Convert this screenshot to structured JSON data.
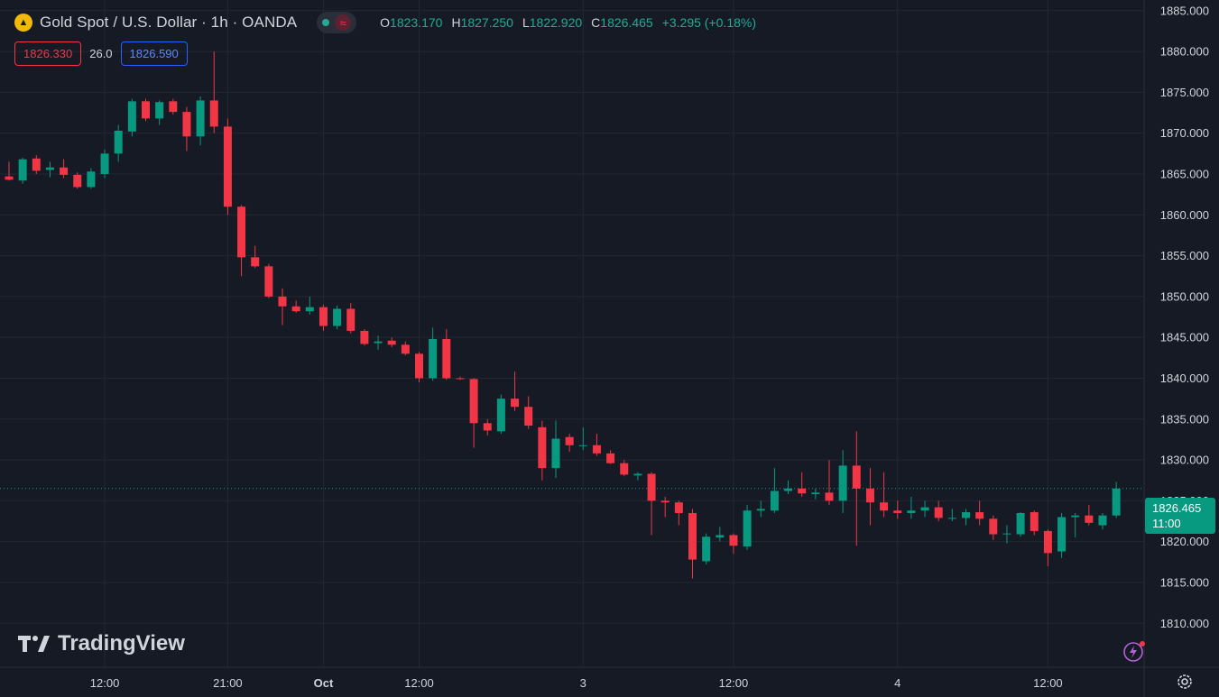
{
  "header": {
    "title": "Gold Spot / U.S. Dollar · 1h · OANDA",
    "logo_icon": "gold-bars-icon",
    "status_icon": "market-open-dot-icon",
    "waves_icon": "waves-icon",
    "ohlc": {
      "o_label": "O",
      "o_value": "1823.170",
      "h_label": "H",
      "h_value": "1827.250",
      "l_label": "L",
      "l_value": "1822.920",
      "c_label": "C",
      "c_value": "1826.465",
      "change": "+3.295 (+0.18%)"
    }
  },
  "trade": {
    "sell_price": "1826.330",
    "spread": "26.0",
    "buy_price": "1826.590"
  },
  "watermark": "TradingView",
  "last_price": {
    "price": "1826.465",
    "countdown": "11:00"
  },
  "colors": {
    "background": "#161a25",
    "grid": "#232733",
    "up": "#089981",
    "down": "#f23645",
    "text": "#d1d4dc",
    "last_price": "#089981"
  },
  "chart_data": {
    "type": "candlestick",
    "ylim": [
      1808,
      1887
    ],
    "y_ticks": [
      "1885.000",
      "1880.000",
      "1875.000",
      "1870.000",
      "1865.000",
      "1860.000",
      "1855.000",
      "1850.000",
      "1845.000",
      "1840.000",
      "1835.000",
      "1830.000",
      "1825.000",
      "1820.000",
      "1815.000",
      "1810.000"
    ],
    "x_ticks": [
      {
        "label": "12:00",
        "index": 7
      },
      {
        "label": "21:00",
        "index": 16
      },
      {
        "label": "Oct",
        "index": 23
      },
      {
        "label": "12:00",
        "index": 30
      },
      {
        "label": "3",
        "index": 42
      },
      {
        "label": "12:00",
        "index": 53
      },
      {
        "label": "4",
        "index": 65
      },
      {
        "label": "12:00",
        "index": 76
      }
    ],
    "bold_x_ticks": [
      "Oct"
    ],
    "candles": [
      {
        "o": 1864.7,
        "h": 1866.5,
        "l": 1864.2,
        "c": 1864.3
      },
      {
        "o": 1864.2,
        "h": 1867.0,
        "l": 1863.8,
        "c": 1866.8
      },
      {
        "o": 1866.9,
        "h": 1867.3,
        "l": 1865.0,
        "c": 1865.4
      },
      {
        "o": 1865.5,
        "h": 1866.5,
        "l": 1864.6,
        "c": 1865.8
      },
      {
        "o": 1865.8,
        "h": 1866.8,
        "l": 1864.5,
        "c": 1864.9
      },
      {
        "o": 1864.9,
        "h": 1865.2,
        "l": 1863.2,
        "c": 1863.4
      },
      {
        "o": 1863.4,
        "h": 1865.7,
        "l": 1863.2,
        "c": 1865.3
      },
      {
        "o": 1865.0,
        "h": 1868.0,
        "l": 1864.5,
        "c": 1867.5
      },
      {
        "o": 1867.5,
        "h": 1871.0,
        "l": 1866.5,
        "c": 1870.3
      },
      {
        "o": 1870.2,
        "h": 1874.2,
        "l": 1869.6,
        "c": 1873.9
      },
      {
        "o": 1873.9,
        "h": 1874.2,
        "l": 1871.5,
        "c": 1871.8
      },
      {
        "o": 1871.8,
        "h": 1874.0,
        "l": 1871.0,
        "c": 1873.8
      },
      {
        "o": 1873.9,
        "h": 1874.2,
        "l": 1872.3,
        "c": 1872.6
      },
      {
        "o": 1872.6,
        "h": 1873.2,
        "l": 1867.8,
        "c": 1869.6
      },
      {
        "o": 1869.6,
        "h": 1874.5,
        "l": 1868.5,
        "c": 1874.0
      },
      {
        "o": 1874.0,
        "h": 1880.0,
        "l": 1870.0,
        "c": 1870.8
      },
      {
        "o": 1870.8,
        "h": 1871.8,
        "l": 1860.0,
        "c": 1861.0
      },
      {
        "o": 1861.0,
        "h": 1861.2,
        "l": 1852.5,
        "c": 1854.8
      },
      {
        "o": 1854.8,
        "h": 1856.2,
        "l": 1853.5,
        "c": 1853.7
      },
      {
        "o": 1853.7,
        "h": 1854.0,
        "l": 1849.8,
        "c": 1850.0
      },
      {
        "o": 1850.0,
        "h": 1851.0,
        "l": 1846.5,
        "c": 1848.8
      },
      {
        "o": 1848.8,
        "h": 1849.5,
        "l": 1848.0,
        "c": 1848.2
      },
      {
        "o": 1848.2,
        "h": 1850.0,
        "l": 1847.8,
        "c": 1848.7
      },
      {
        "o": 1848.7,
        "h": 1849.0,
        "l": 1845.8,
        "c": 1846.4
      },
      {
        "o": 1846.4,
        "h": 1848.9,
        "l": 1846.0,
        "c": 1848.5
      },
      {
        "o": 1848.5,
        "h": 1849.2,
        "l": 1845.5,
        "c": 1845.8
      },
      {
        "o": 1845.8,
        "h": 1846.0,
        "l": 1844.0,
        "c": 1844.2
      },
      {
        "o": 1844.3,
        "h": 1845.2,
        "l": 1843.5,
        "c": 1844.5
      },
      {
        "o": 1844.6,
        "h": 1845.0,
        "l": 1843.8,
        "c": 1844.1
      },
      {
        "o": 1844.1,
        "h": 1844.5,
        "l": 1842.8,
        "c": 1843.0
      },
      {
        "o": 1843.0,
        "h": 1843.2,
        "l": 1839.5,
        "c": 1840.0
      },
      {
        "o": 1840.0,
        "h": 1846.2,
        "l": 1839.7,
        "c": 1844.8
      },
      {
        "o": 1844.8,
        "h": 1846.0,
        "l": 1839.8,
        "c": 1840.0
      },
      {
        "o": 1840.0,
        "h": 1840.2,
        "l": 1839.8,
        "c": 1839.9
      },
      {
        "o": 1839.9,
        "h": 1840.0,
        "l": 1831.5,
        "c": 1834.5
      },
      {
        "o": 1834.5,
        "h": 1835.0,
        "l": 1833.0,
        "c": 1833.6
      },
      {
        "o": 1833.5,
        "h": 1838.0,
        "l": 1833.2,
        "c": 1837.5
      },
      {
        "o": 1837.5,
        "h": 1840.8,
        "l": 1836.0,
        "c": 1836.5
      },
      {
        "o": 1836.5,
        "h": 1837.8,
        "l": 1833.8,
        "c": 1834.2
      },
      {
        "o": 1834.0,
        "h": 1834.8,
        "l": 1827.5,
        "c": 1829.0
      },
      {
        "o": 1829.0,
        "h": 1834.8,
        "l": 1827.8,
        "c": 1832.6
      },
      {
        "o": 1832.8,
        "h": 1833.2,
        "l": 1831.0,
        "c": 1831.8
      },
      {
        "o": 1831.7,
        "h": 1834.0,
        "l": 1831.2,
        "c": 1831.8
      },
      {
        "o": 1831.8,
        "h": 1833.2,
        "l": 1830.5,
        "c": 1830.8
      },
      {
        "o": 1830.8,
        "h": 1831.2,
        "l": 1829.5,
        "c": 1829.6
      },
      {
        "o": 1829.6,
        "h": 1830.0,
        "l": 1828.0,
        "c": 1828.2
      },
      {
        "o": 1828.1,
        "h": 1828.5,
        "l": 1827.5,
        "c": 1828.3
      },
      {
        "o": 1828.3,
        "h": 1828.5,
        "l": 1820.8,
        "c": 1825.0
      },
      {
        "o": 1825.0,
        "h": 1825.5,
        "l": 1823.0,
        "c": 1824.8
      },
      {
        "o": 1824.8,
        "h": 1825.0,
        "l": 1822.0,
        "c": 1823.5
      },
      {
        "o": 1823.5,
        "h": 1824.0,
        "l": 1815.5,
        "c": 1817.8
      },
      {
        "o": 1817.6,
        "h": 1821.0,
        "l": 1817.2,
        "c": 1820.6
      },
      {
        "o": 1820.5,
        "h": 1821.8,
        "l": 1820.0,
        "c": 1820.8
      },
      {
        "o": 1820.8,
        "h": 1821.0,
        "l": 1818.5,
        "c": 1819.5
      },
      {
        "o": 1819.4,
        "h": 1824.5,
        "l": 1819.0,
        "c": 1823.8
      },
      {
        "o": 1823.8,
        "h": 1825.0,
        "l": 1823.0,
        "c": 1824.0
      },
      {
        "o": 1823.8,
        "h": 1829.0,
        "l": 1823.5,
        "c": 1826.2
      },
      {
        "o": 1826.2,
        "h": 1827.5,
        "l": 1825.8,
        "c": 1826.5
      },
      {
        "o": 1826.5,
        "h": 1828.5,
        "l": 1825.5,
        "c": 1825.9
      },
      {
        "o": 1825.8,
        "h": 1826.5,
        "l": 1825.2,
        "c": 1826.0
      },
      {
        "o": 1826.0,
        "h": 1830.0,
        "l": 1824.5,
        "c": 1825.0
      },
      {
        "o": 1825.0,
        "h": 1831.2,
        "l": 1823.5,
        "c": 1829.3
      },
      {
        "o": 1829.3,
        "h": 1833.5,
        "l": 1819.5,
        "c": 1826.5
      },
      {
        "o": 1826.5,
        "h": 1829.0,
        "l": 1822.0,
        "c": 1824.8
      },
      {
        "o": 1824.8,
        "h": 1828.5,
        "l": 1823.0,
        "c": 1823.8
      },
      {
        "o": 1823.8,
        "h": 1825.0,
        "l": 1822.8,
        "c": 1823.5
      },
      {
        "o": 1823.5,
        "h": 1825.5,
        "l": 1822.8,
        "c": 1823.8
      },
      {
        "o": 1823.8,
        "h": 1825.0,
        "l": 1823.0,
        "c": 1824.2
      },
      {
        "o": 1824.2,
        "h": 1825.0,
        "l": 1822.5,
        "c": 1822.9
      },
      {
        "o": 1822.8,
        "h": 1824.0,
        "l": 1822.5,
        "c": 1822.9
      },
      {
        "o": 1822.9,
        "h": 1824.0,
        "l": 1822.0,
        "c": 1823.6
      },
      {
        "o": 1823.6,
        "h": 1825.0,
        "l": 1822.0,
        "c": 1822.8
      },
      {
        "o": 1822.8,
        "h": 1823.2,
        "l": 1820.2,
        "c": 1820.9
      },
      {
        "o": 1820.9,
        "h": 1822.0,
        "l": 1819.8,
        "c": 1821.0
      },
      {
        "o": 1820.9,
        "h": 1823.6,
        "l": 1820.6,
        "c": 1823.5
      },
      {
        "o": 1823.6,
        "h": 1823.8,
        "l": 1820.8,
        "c": 1821.3
      },
      {
        "o": 1821.3,
        "h": 1821.5,
        "l": 1817.0,
        "c": 1818.6
      },
      {
        "o": 1818.8,
        "h": 1823.5,
        "l": 1818.0,
        "c": 1823.0
      },
      {
        "o": 1823.0,
        "h": 1823.5,
        "l": 1820.5,
        "c": 1823.2
      },
      {
        "o": 1823.2,
        "h": 1824.5,
        "l": 1822.0,
        "c": 1822.3
      },
      {
        "o": 1822.0,
        "h": 1823.5,
        "l": 1821.5,
        "c": 1823.2
      },
      {
        "o": 1823.2,
        "h": 1827.3,
        "l": 1822.9,
        "c": 1826.5
      }
    ]
  }
}
